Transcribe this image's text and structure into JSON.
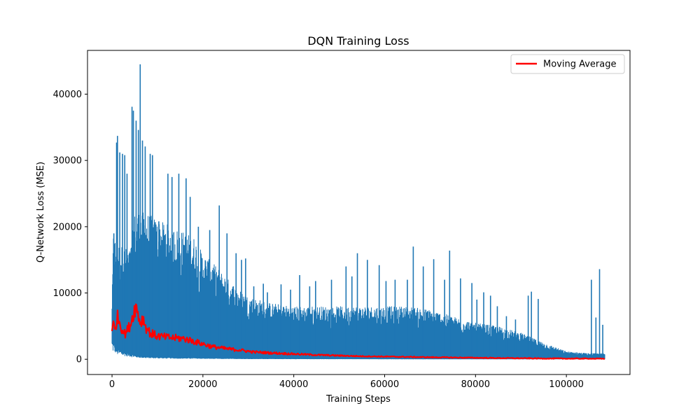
{
  "chart_data": {
    "type": "line",
    "title": "DQN Training Loss",
    "xlabel": "Training Steps",
    "ylabel": "Q-Network Loss (MSE)",
    "xlim": [
      -5400,
      114000
    ],
    "ylim": [
      -2300,
      46600
    ],
    "x_ticks": [
      0,
      20000,
      40000,
      60000,
      80000,
      100000
    ],
    "y_ticks": [
      0,
      10000,
      20000,
      30000,
      40000
    ],
    "x_tick_labels": [
      "0",
      "20000",
      "40000",
      "60000",
      "80000",
      "100000"
    ],
    "y_tick_labels": [
      "0",
      "10000",
      "20000",
      "30000",
      "40000"
    ],
    "legend": {
      "position": "top-right",
      "entries": [
        "Moving Average"
      ]
    },
    "colors": {
      "loss": "#1f77b4",
      "moving_average": "#ff0000"
    },
    "series": [
      {
        "name": "Loss",
        "color": "#1f77b4",
        "x_range": [
          0,
          108500
        ],
        "envelope_x": [
          0,
          300,
          800,
          1200,
          2500,
          4000,
          5000,
          6000,
          8000,
          10000,
          12000,
          15000,
          18000,
          20000,
          23000,
          25000,
          28000,
          30000,
          35000,
          40000,
          45000,
          50000,
          55000,
          60000,
          65000,
          70000,
          75000,
          80000,
          85000,
          90000,
          95000,
          100000,
          105000,
          108500
        ],
        "envelope_max": [
          9000,
          19000,
          18000,
          17500,
          17000,
          16500,
          22000,
          22500,
          22000,
          21000,
          20500,
          19500,
          18500,
          16000,
          14000,
          12500,
          10500,
          9500,
          8500,
          8000,
          8000,
          8000,
          8000,
          8000,
          8000,
          7500,
          6500,
          5500,
          5000,
          4000,
          2500,
          1200,
          900,
          900
        ],
        "envelope_min": [
          3000,
          2500,
          2200,
          1600,
          1200,
          900,
          600,
          500,
          350,
          300,
          250,
          200,
          180,
          150,
          120,
          100,
          80,
          60,
          50,
          40,
          30,
          25,
          20,
          15,
          12,
          10,
          8,
          6,
          5,
          4,
          3,
          3,
          3,
          3
        ],
        "spikes": [
          [
            400,
            19000
          ],
          [
            1000,
            32700
          ],
          [
            1200,
            33700
          ],
          [
            1700,
            31200
          ],
          [
            2300,
            31000
          ],
          [
            2800,
            30800
          ],
          [
            3300,
            28000
          ],
          [
            4400,
            38100
          ],
          [
            4700,
            37500
          ],
          [
            5300,
            36000
          ],
          [
            5800,
            34600
          ],
          [
            6200,
            44500
          ],
          [
            6700,
            33000
          ],
          [
            7300,
            32100
          ],
          [
            8400,
            31000
          ],
          [
            8900,
            30800
          ],
          [
            10300,
            20800
          ],
          [
            12300,
            28000
          ],
          [
            13200,
            27500
          ],
          [
            14700,
            28000
          ],
          [
            16300,
            27300
          ],
          [
            17200,
            24500
          ],
          [
            19000,
            20000
          ],
          [
            21500,
            19500
          ],
          [
            23600,
            23200
          ],
          [
            25300,
            19000
          ],
          [
            27300,
            16000
          ],
          [
            28500,
            15000
          ],
          [
            29400,
            15200
          ],
          [
            31200,
            11000
          ],
          [
            33300,
            11400
          ],
          [
            34200,
            10100
          ],
          [
            37200,
            11300
          ],
          [
            39300,
            10500
          ],
          [
            41300,
            12700
          ],
          [
            43500,
            11000
          ],
          [
            44800,
            11800
          ],
          [
            48300,
            12000
          ],
          [
            51500,
            14000
          ],
          [
            52800,
            12500
          ],
          [
            54000,
            16000
          ],
          [
            56200,
            15000
          ],
          [
            58800,
            14200
          ],
          [
            60300,
            11800
          ],
          [
            62300,
            12000
          ],
          [
            65000,
            12000
          ],
          [
            66300,
            17000
          ],
          [
            68500,
            14000
          ],
          [
            70800,
            15100
          ],
          [
            73200,
            12000
          ],
          [
            74300,
            16400
          ],
          [
            76700,
            12200
          ],
          [
            79200,
            11500
          ],
          [
            80300,
            9000
          ],
          [
            81800,
            10100
          ],
          [
            83300,
            9600
          ],
          [
            84800,
            8000
          ],
          [
            86800,
            6500
          ],
          [
            88800,
            6000
          ],
          [
            91600,
            9600
          ],
          [
            92300,
            10200
          ],
          [
            93800,
            9100
          ],
          [
            96000,
            1000
          ],
          [
            100000,
            1000
          ],
          [
            103000,
            900
          ],
          [
            105500,
            12000
          ],
          [
            106500,
            6300
          ],
          [
            107300,
            13600
          ],
          [
            108000,
            5200
          ]
        ]
      },
      {
        "name": "Moving Average",
        "color": "#ff0000",
        "x": [
          0,
          300,
          700,
          1100,
          1600,
          2200,
          2800,
          3500,
          4200,
          4800,
          5200,
          5700,
          6200,
          6800,
          7500,
          8500,
          10000,
          12000,
          14000,
          16000,
          18000,
          20000,
          22000,
          25000,
          28000,
          31000,
          35000,
          40000,
          45000,
          50000,
          55000,
          60000,
          65000,
          70000,
          75000,
          80000,
          85000,
          90000,
          95000,
          100000,
          105000,
          108500
        ],
        "values": [
          4800,
          5200,
          4200,
          6500,
          5800,
          4600,
          3800,
          4500,
          5600,
          7200,
          8000,
          7000,
          5500,
          6200,
          4800,
          3900,
          3500,
          3300,
          3200,
          3100,
          2700,
          2300,
          1900,
          1600,
          1400,
          1100,
          950,
          800,
          650,
          550,
          450,
          400,
          350,
          300,
          260,
          220,
          180,
          150,
          120,
          100,
          90,
          80
        ]
      }
    ]
  }
}
